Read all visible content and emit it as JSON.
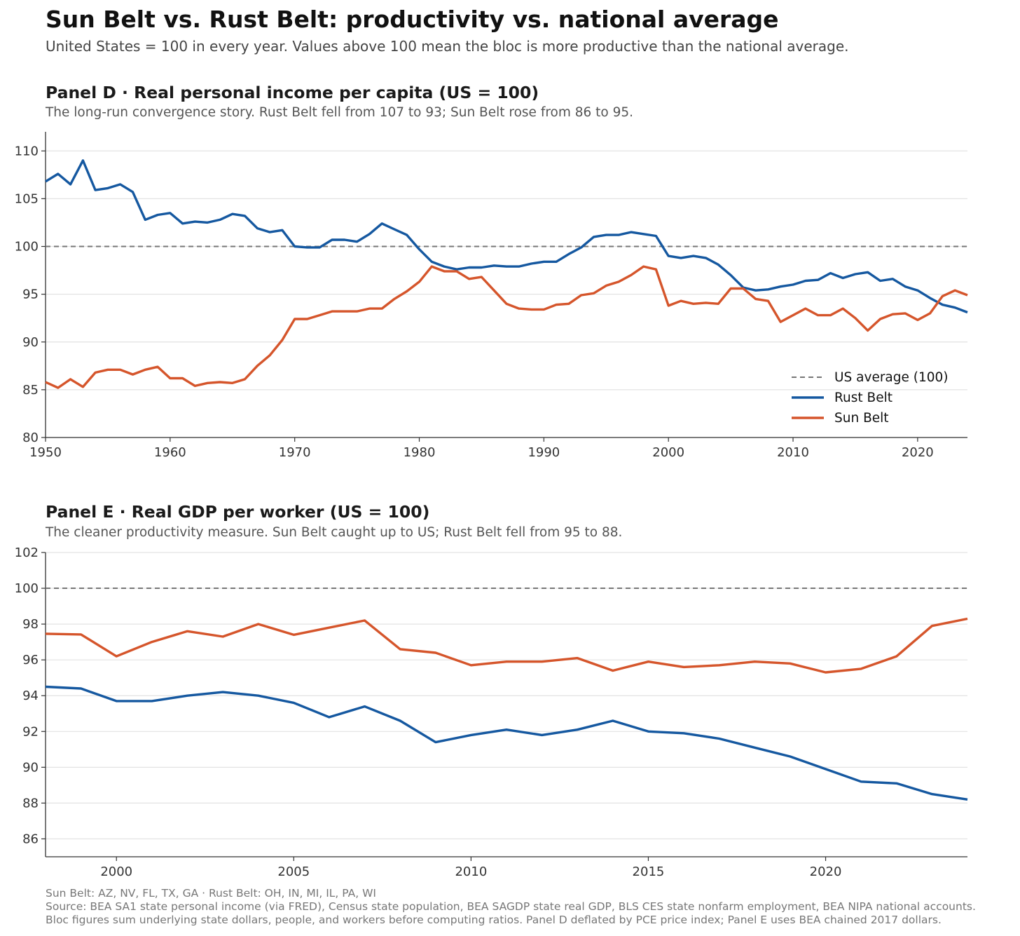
{
  "header": {
    "title": "Sun Belt vs. Rust Belt: productivity vs. national average",
    "subtitle": "United States = 100 in every year. Values above 100 mean the bloc is more productive than the national average."
  },
  "colors": {
    "rust": "#1558a0",
    "sun": "#d5552b",
    "reference": "#777777",
    "grid": "#e3e3e3"
  },
  "chart_data": [
    {
      "type": "line",
      "title": "Panel D  ·  Real personal income per capita (US = 100)",
      "subtitle": "The long-run convergence story. Rust Belt fell from 107 to 93; Sun Belt rose from 86 to 95.",
      "xlabel": "",
      "ylabel": "",
      "xlim": [
        1950,
        2024
      ],
      "ylim": [
        80,
        112
      ],
      "xticks": [
        1950,
        1960,
        1970,
        1980,
        1990,
        2000,
        2010,
        2020
      ],
      "yticks": [
        80,
        85,
        90,
        95,
        100,
        105,
        110
      ],
      "grid": true,
      "legend_position": "bottom-right",
      "reference_line": {
        "value": 100,
        "label": "US average (100)"
      },
      "x_start": 1950,
      "series": [
        {
          "name": "Rust Belt",
          "color_key": "rust",
          "values": [
            106.8,
            107.6,
            106.5,
            109.0,
            105.9,
            106.1,
            106.5,
            105.7,
            102.8,
            103.3,
            103.5,
            102.4,
            102.6,
            102.5,
            102.8,
            103.4,
            103.2,
            101.9,
            101.5,
            101.7,
            100.0,
            99.9,
            99.9,
            100.7,
            100.7,
            100.5,
            101.3,
            102.4,
            101.8,
            101.2,
            99.7,
            98.4,
            97.9,
            97.6,
            97.8,
            97.8,
            98.0,
            97.9,
            97.9,
            98.2,
            98.4,
            98.4,
            99.2,
            99.9,
            101.0,
            101.2,
            101.2,
            101.5,
            101.3,
            101.1,
            99.0,
            98.8,
            99.0,
            98.8,
            98.1,
            97.0,
            95.7,
            95.4,
            95.5,
            95.8,
            96.0,
            96.4,
            96.5,
            97.2,
            96.7,
            97.1,
            97.3,
            96.4,
            96.6,
            95.8,
            95.4,
            94.6,
            93.9,
            93.6,
            93.1
          ]
        },
        {
          "name": "Sun Belt",
          "color_key": "sun",
          "values": [
            85.8,
            85.2,
            86.1,
            85.3,
            86.8,
            87.1,
            87.1,
            86.6,
            87.1,
            87.4,
            86.2,
            86.2,
            85.4,
            85.7,
            85.8,
            85.7,
            86.1,
            87.5,
            88.6,
            90.2,
            92.4,
            92.4,
            92.8,
            93.2,
            93.2,
            93.2,
            93.5,
            93.5,
            94.5,
            95.3,
            96.3,
            97.9,
            97.4,
            97.4,
            96.6,
            96.8,
            95.4,
            94.0,
            93.5,
            93.4,
            93.4,
            93.9,
            94.0,
            94.9,
            95.1,
            95.9,
            96.3,
            97.0,
            97.9,
            97.6,
            93.8,
            94.3,
            94.0,
            94.1,
            94.0,
            95.6,
            95.6,
            94.5,
            94.3,
            92.1,
            92.8,
            93.5,
            92.8,
            92.8,
            93.5,
            92.5,
            91.2,
            92.4,
            92.9,
            93.0,
            92.3,
            93.0,
            94.8,
            95.4,
            94.9
          ]
        }
      ]
    },
    {
      "type": "line",
      "title": "Panel E  ·  Real GDP per worker (US = 100)",
      "subtitle": "The cleaner productivity measure. Sun Belt caught up to US; Rust Belt fell from 95 to 88.",
      "xlabel": "",
      "ylabel": "",
      "xlim": [
        1998,
        2024
      ],
      "ylim": [
        85,
        102
      ],
      "xticks": [
        2000,
        2005,
        2010,
        2015,
        2020
      ],
      "yticks": [
        86,
        88,
        90,
        92,
        94,
        96,
        98,
        100,
        102
      ],
      "grid": true,
      "reference_line": {
        "value": 100
      },
      "x_start": 1998,
      "series": [
        {
          "name": "Sun Belt",
          "color_key": "sun",
          "values": [
            97.46,
            97.42,
            96.2,
            97.0,
            97.6,
            97.3,
            98.0,
            97.4,
            97.8,
            98.2,
            96.6,
            96.4,
            95.7,
            95.9,
            95.9,
            96.1,
            95.4,
            95.9,
            95.6,
            95.7,
            95.9,
            95.8,
            95.3,
            95.5,
            96.2,
            97.9,
            98.3
          ]
        },
        {
          "name": "Rust Belt",
          "color_key": "rust",
          "values": [
            94.5,
            94.4,
            93.7,
            93.7,
            94.0,
            94.2,
            94.0,
            93.6,
            92.8,
            93.4,
            92.6,
            91.4,
            91.8,
            92.1,
            91.8,
            92.1,
            92.6,
            92.0,
            91.9,
            91.6,
            91.1,
            90.6,
            89.9,
            89.2,
            89.1,
            88.5,
            88.2
          ]
        }
      ]
    }
  ],
  "footer": {
    "line1": "Sun Belt: AZ, NV, FL, TX, GA  ·  Rust Belt: OH, IN, MI, IL, PA, WI",
    "line2": "Source: BEA SA1 state personal income (via FRED), Census state population, BEA SAGDP state real GDP, BLS CES state nonfarm employment, BEA NIPA national accounts.",
    "line3": "Bloc figures sum underlying state dollars, people, and workers before computing ratios. Panel D deflated by PCE price index; Panel E uses BEA chained 2017 dollars."
  }
}
